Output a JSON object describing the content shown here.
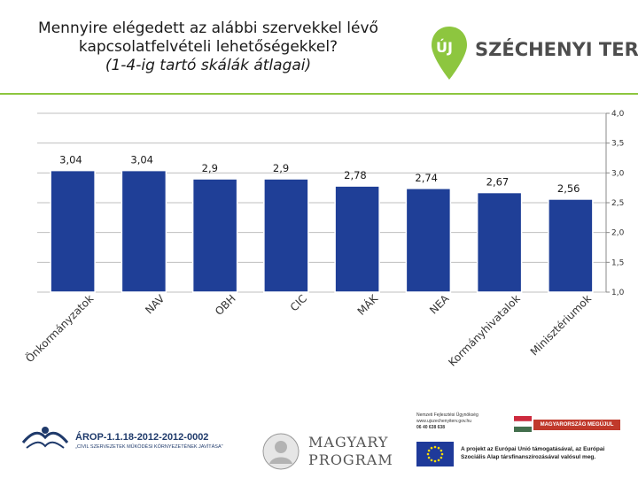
{
  "header": {
    "title_line1": "Mennyire elégedett az alábbi szervekkel lévő",
    "title_line2": "kapcsolatfelvételi lehetőségekkel?",
    "title_line3": "(1-4-ig tartó skálák átlagai)",
    "logo_badge": "ÚJ",
    "logo_brand": "SZÉCHENYI TERV"
  },
  "colors": {
    "bar": "#1f3f97",
    "separator": "#8dc63f",
    "logo_green": "#8dc63f",
    "grid": "#bfbfbf"
  },
  "chart_data": {
    "type": "bar",
    "title": "Mennyire elégedett az alábbi szervekkel lévő kapcsolatfelvételi lehetőségekkel? (1-4-ig tartó skálák átlagai)",
    "categories": [
      "Önkormányzatok",
      "NAV",
      "OBH",
      "CIC",
      "MÁK",
      "NEA",
      "Kormányhivatalok",
      "Minisztériumok"
    ],
    "values": [
      3.04,
      3.04,
      2.9,
      2.9,
      2.78,
      2.74,
      2.67,
      2.56
    ],
    "data_labels": [
      "3,04",
      "3,04",
      "2,9",
      "2,9",
      "2,78",
      "2,74",
      "2,67",
      "2,56"
    ],
    "y_ticks": [
      "4,0",
      "3,5",
      "3,0",
      "2,5",
      "2,0",
      "1,5",
      "1,0"
    ],
    "y_tick_values": [
      4.0,
      3.5,
      3.0,
      2.5,
      2.0,
      1.5,
      1.0
    ],
    "ylim": [
      1.0,
      4.0
    ],
    "y_axis_side": "right",
    "grid": true,
    "xlabel": "",
    "ylabel": ""
  },
  "footer": {
    "arop_code": "ÁROP-1.1.18-2012-2012-0002",
    "arop_sub": "„CIVIL SZERVEZETEK MŰKÖDÉSI KÖRNYEZETÉNEK JAVÍTÁSA\"",
    "magyary_line1": "MAGYARY",
    "magyary_line2": "PROGRAM",
    "nfu_line1": "Nemzeti Fejlesztési Ügynökség",
    "nfu_line2": "www.ujszechenyiterv.gov.hu",
    "nfu_line3": "06 40 638 638",
    "mo_banner": "MAGYARORSZÁG MEGÚJUL",
    "eu_line1": "A projekt az Európai Unió támogatásával, az Európai",
    "eu_line2": "Szociális Alap társfinanszírozásával valósul meg."
  }
}
